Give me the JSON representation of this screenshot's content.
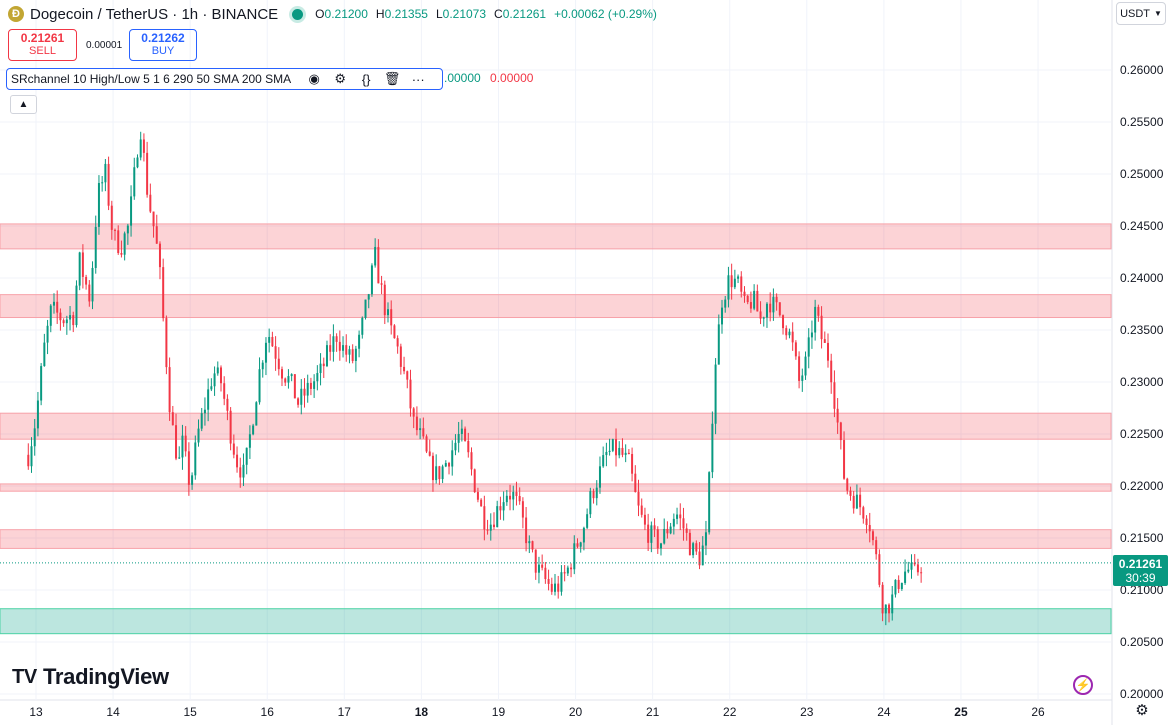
{
  "header": {
    "coin_icon": "doge-coin-icon",
    "title": "Dogecoin / TetherUS · 1h · BINANCE",
    "ohlc": [
      {
        "key": "O",
        "value": "0.21200"
      },
      {
        "key": "H",
        "value": "0.21355"
      },
      {
        "key": "L",
        "value": "0.21073"
      },
      {
        "key": "C",
        "value": "0.21261"
      }
    ],
    "change": "+0.00062 (+0.29%)"
  },
  "trade": {
    "sell_price": "0.21261",
    "sell_label": "SELL",
    "spread": "0.00001",
    "buy_price": "0.21262",
    "buy_label": "BUY"
  },
  "indicator": {
    "name": "SRchannel 10 High/Low 5 1 6 290 50 SMA 200 SMA",
    "value_1": ".00000",
    "value_2": "0.00000"
  },
  "currency": "USDT",
  "last_price": {
    "price": "0.21261",
    "countdown": "30:39"
  },
  "brand": "TradingView",
  "colors": {
    "up": "#089981",
    "down": "#f23645",
    "resistance_zone": "#f23645",
    "support_zone": "#22ab94"
  },
  "chart_data": {
    "type": "candlestick",
    "symbol": "Dogecoin / TetherUS",
    "interval": "1h",
    "ylim": [
      0.2,
      0.261
    ],
    "y_ticks": [
      "0.26000",
      "0.25500",
      "0.25000",
      "0.24500",
      "0.24000",
      "0.23500",
      "0.23000",
      "0.22500",
      "0.22000",
      "0.21500",
      "0.21000",
      "0.20500",
      "0.20000"
    ],
    "x_ticks": [
      {
        "label": "13",
        "day": 13
      },
      {
        "label": "14",
        "day": 14
      },
      {
        "label": "15",
        "day": 15
      },
      {
        "label": "16",
        "day": 16
      },
      {
        "label": "17",
        "day": 17
      },
      {
        "label": "18",
        "day": 18,
        "bold": true
      },
      {
        "label": "19",
        "day": 19
      },
      {
        "label": "20",
        "day": 20
      },
      {
        "label": "21",
        "day": 21
      },
      {
        "label": "22",
        "day": 22
      },
      {
        "label": "23",
        "day": 23
      },
      {
        "label": "24",
        "day": 24
      },
      {
        "label": "25",
        "day": 25,
        "bold": true
      },
      {
        "label": "26",
        "day": 26
      }
    ],
    "zones": [
      {
        "type": "resistance",
        "low": 0.2428,
        "high": 0.2452
      },
      {
        "type": "resistance",
        "low": 0.2362,
        "high": 0.2384
      },
      {
        "type": "resistance",
        "low": 0.2245,
        "high": 0.227
      },
      {
        "type": "resistance",
        "low": 0.2195,
        "high": 0.2202
      },
      {
        "type": "resistance",
        "low": 0.214,
        "high": 0.2158
      },
      {
        "type": "support",
        "low": 0.2058,
        "high": 0.2082
      }
    ],
    "last": 0.21261,
    "path": [
      [
        12.9,
        0.223
      ],
      [
        13.0,
        0.2265
      ],
      [
        13.1,
        0.233
      ],
      [
        13.2,
        0.237
      ],
      [
        13.35,
        0.236
      ],
      [
        13.5,
        0.2365
      ],
      [
        13.55,
        0.242
      ],
      [
        13.7,
        0.238
      ],
      [
        13.8,
        0.248
      ],
      [
        13.9,
        0.25
      ],
      [
        14.0,
        0.244
      ],
      [
        14.1,
        0.243
      ],
      [
        14.2,
        0.245
      ],
      [
        14.25,
        0.248
      ],
      [
        14.35,
        0.255
      ],
      [
        14.45,
        0.248
      ],
      [
        14.55,
        0.244
      ],
      [
        14.6,
        0.241
      ],
      [
        14.65,
        0.236
      ],
      [
        14.75,
        0.2265
      ],
      [
        14.85,
        0.222
      ],
      [
        14.9,
        0.224
      ],
      [
        15.0,
        0.22
      ],
      [
        15.1,
        0.225
      ],
      [
        15.2,
        0.228
      ],
      [
        15.3,
        0.231
      ],
      [
        15.4,
        0.23
      ],
      [
        15.5,
        0.226
      ],
      [
        15.6,
        0.2225
      ],
      [
        15.7,
        0.221
      ],
      [
        15.8,
        0.226
      ],
      [
        15.9,
        0.231
      ],
      [
        16.0,
        0.235
      ],
      [
        16.1,
        0.233
      ],
      [
        16.2,
        0.231
      ],
      [
        16.3,
        0.23
      ],
      [
        16.4,
        0.228
      ],
      [
        16.5,
        0.229
      ],
      [
        16.6,
        0.23
      ],
      [
        16.7,
        0.231
      ],
      [
        16.8,
        0.233
      ],
      [
        16.9,
        0.2345
      ],
      [
        17.0,
        0.233
      ],
      [
        17.1,
        0.232
      ],
      [
        17.2,
        0.234
      ],
      [
        17.3,
        0.238
      ],
      [
        17.4,
        0.242
      ],
      [
        17.5,
        0.238
      ],
      [
        17.6,
        0.235
      ],
      [
        17.7,
        0.233
      ],
      [
        17.8,
        0.23
      ],
      [
        17.9,
        0.226
      ],
      [
        18.0,
        0.2245
      ],
      [
        18.1,
        0.222
      ],
      [
        18.2,
        0.221
      ],
      [
        18.3,
        0.222
      ],
      [
        18.4,
        0.2235
      ],
      [
        18.5,
        0.225
      ],
      [
        18.6,
        0.223
      ],
      [
        18.7,
        0.22
      ],
      [
        18.8,
        0.217
      ],
      [
        18.9,
        0.2165
      ],
      [
        19.0,
        0.218
      ],
      [
        19.1,
        0.2195
      ],
      [
        19.2,
        0.219
      ],
      [
        19.3,
        0.217
      ],
      [
        19.4,
        0.214
      ],
      [
        19.5,
        0.212
      ],
      [
        19.6,
        0.211
      ],
      [
        19.7,
        0.21
      ],
      [
        19.8,
        0.2105
      ],
      [
        19.9,
        0.212
      ],
      [
        20.0,
        0.214
      ],
      [
        20.1,
        0.216
      ],
      [
        20.2,
        0.219
      ],
      [
        20.3,
        0.221
      ],
      [
        20.4,
        0.223
      ],
      [
        20.5,
        0.2235
      ],
      [
        20.6,
        0.223
      ],
      [
        20.7,
        0.222
      ],
      [
        20.8,
        0.218
      ],
      [
        20.9,
        0.216
      ],
      [
        21.0,
        0.215
      ],
      [
        21.1,
        0.2145
      ],
      [
        21.2,
        0.216
      ],
      [
        21.3,
        0.2175
      ],
      [
        21.4,
        0.216
      ],
      [
        21.5,
        0.214
      ],
      [
        21.6,
        0.213
      ],
      [
        21.7,
        0.215
      ],
      [
        21.8,
        0.231
      ],
      [
        21.9,
        0.238
      ],
      [
        22.0,
        0.24
      ],
      [
        22.1,
        0.2395
      ],
      [
        22.2,
        0.237
      ],
      [
        22.3,
        0.238
      ],
      [
        22.4,
        0.236
      ],
      [
        22.5,
        0.238
      ],
      [
        22.6,
        0.237
      ],
      [
        22.7,
        0.236
      ],
      [
        22.8,
        0.234
      ],
      [
        22.9,
        0.23
      ],
      [
        23.0,
        0.232
      ],
      [
        23.1,
        0.237
      ],
      [
        23.2,
        0.234
      ],
      [
        23.3,
        0.232
      ],
      [
        23.4,
        0.226
      ],
      [
        23.5,
        0.22
      ],
      [
        23.6,
        0.219
      ],
      [
        23.7,
        0.218
      ],
      [
        23.8,
        0.217
      ],
      [
        23.9,
        0.213
      ],
      [
        24.0,
        0.208
      ],
      [
        24.1,
        0.209
      ],
      [
        24.2,
        0.211
      ],
      [
        24.3,
        0.212
      ],
      [
        24.4,
        0.2115
      ],
      [
        24.5,
        0.2126
      ]
    ]
  }
}
